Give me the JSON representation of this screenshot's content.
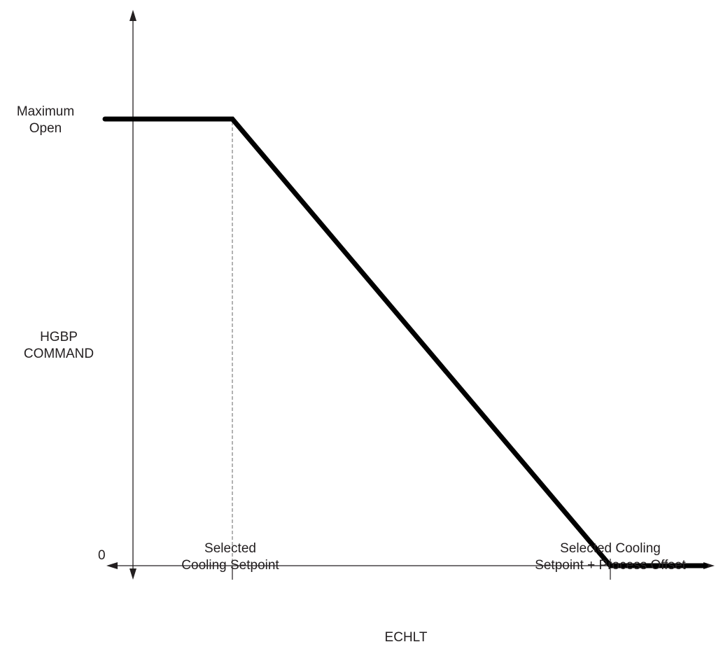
{
  "chart_data": {
    "type": "line",
    "title": "",
    "xlabel": "ECHLT",
    "ylabel": [
      "HGBP",
      "COMMAND"
    ],
    "y_tick_labels": {
      "max": [
        "Maximum",
        "Open"
      ],
      "zero": "0"
    },
    "x_tick_labels": {
      "setpoint": [
        "Selected",
        "Cooling Setpoint"
      ],
      "setpoint_plus_offset": [
        "Selected Cooling",
        "Setpoint + Process Offset"
      ]
    },
    "series": [
      {
        "points": [
          {
            "x": "left of axis",
            "y": "Maximum Open"
          },
          {
            "x": "Selected Cooling Setpoint",
            "y": "Maximum Open"
          },
          {
            "x": "Selected Cooling Setpoint + Process Offset",
            "y": "0"
          },
          {
            "x": "beyond",
            "y": "0"
          }
        ]
      }
    ],
    "grid": false,
    "legend": "none",
    "colors": {
      "line": "#000000",
      "axis": "#231f20",
      "guide": "#7f7f7f"
    }
  }
}
